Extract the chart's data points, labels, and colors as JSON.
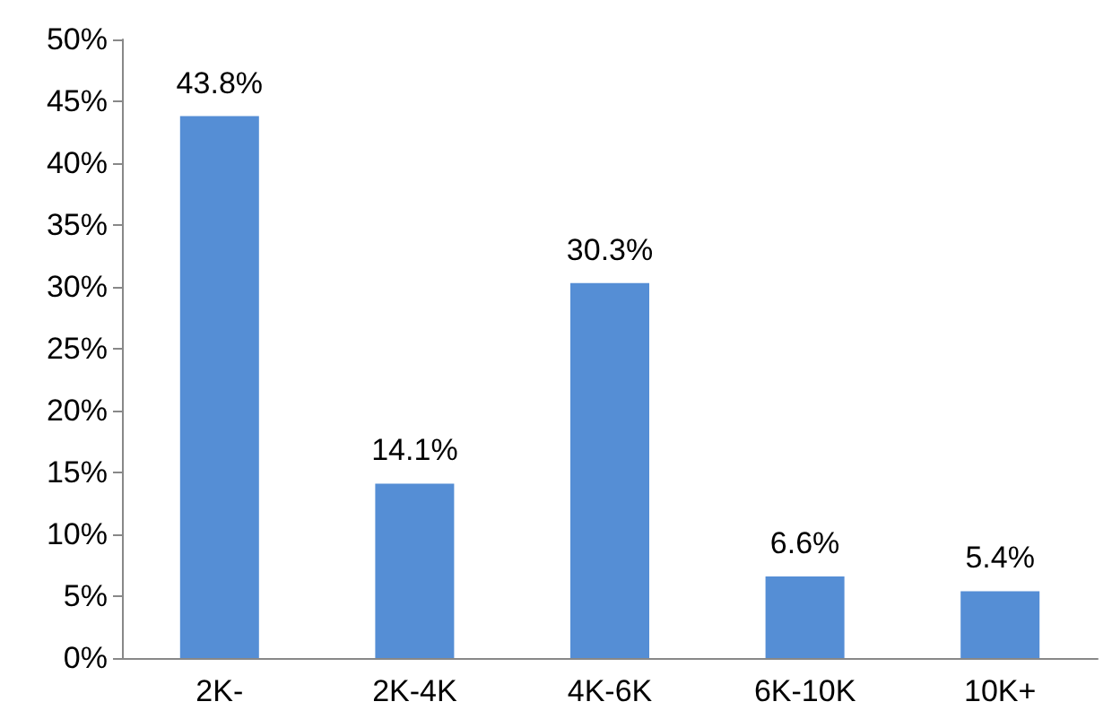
{
  "chart_data": {
    "type": "bar",
    "categories": [
      "2K-",
      "2K-4K",
      "4K-6K",
      "6K-10K",
      "10K+"
    ],
    "values": [
      43.8,
      14.1,
      30.3,
      6.6,
      5.4
    ],
    "value_labels": [
      "43.8%",
      "14.1%",
      "30.3%",
      "6.6%",
      "5.4%"
    ],
    "color": "#558ed5",
    "ylim": [
      0,
      50
    ],
    "yticks": [
      {
        "value": 0,
        "label": "0%"
      },
      {
        "value": 5,
        "label": "5%"
      },
      {
        "value": 10,
        "label": "10%"
      },
      {
        "value": 15,
        "label": "15%"
      },
      {
        "value": 20,
        "label": "20%"
      },
      {
        "value": 25,
        "label": "25%"
      },
      {
        "value": 30,
        "label": "30%"
      },
      {
        "value": 35,
        "label": "35%"
      },
      {
        "value": 40,
        "label": "40%"
      },
      {
        "value": 45,
        "label": "45%"
      },
      {
        "value": 50,
        "label": "50%"
      }
    ],
    "grid": false
  }
}
